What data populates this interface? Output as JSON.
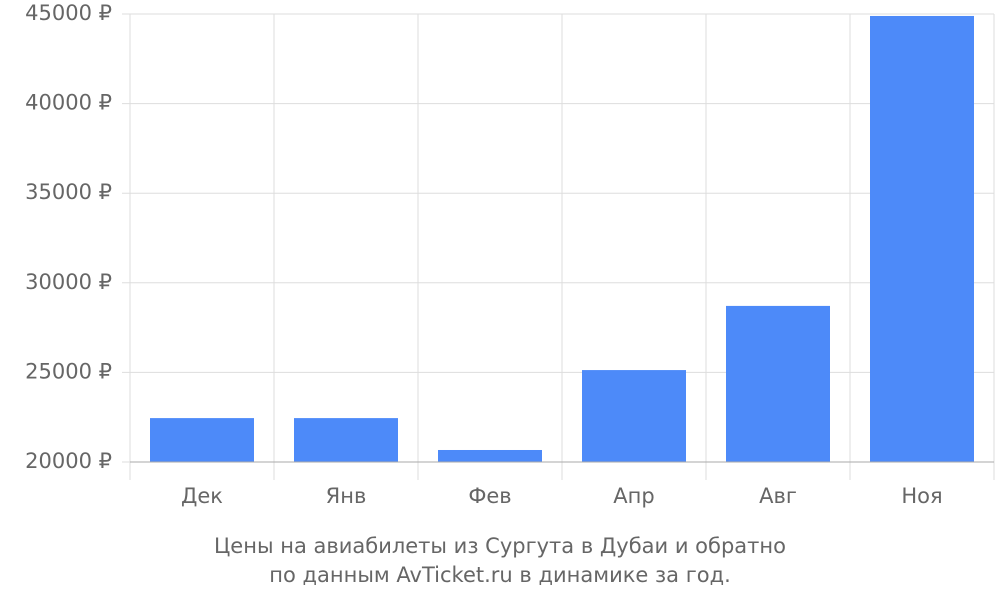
{
  "chart_data": {
    "type": "bar",
    "title": [
      "Цены на авиабилеты из Сургута в Дубаи и обратно",
      "по данным AvTicket.ru в динамике за год."
    ],
    "categories": [
      "Дек",
      "Янв",
      "Фев",
      "Апр",
      "Авг",
      "Ноя"
    ],
    "values": [
      22450,
      22450,
      20670,
      25130,
      28710,
      44890
    ],
    "color": "#4d8af9",
    "ylim": [
      20000,
      45000
    ],
    "yticks": [
      {
        "value": 20000,
        "label": "20000 ₽"
      },
      {
        "value": 25000,
        "label": "25000 ₽"
      },
      {
        "value": 30000,
        "label": "30000 ₽"
      },
      {
        "value": 35000,
        "label": "35000 ₽"
      },
      {
        "value": 40000,
        "label": "40000 ₽"
      },
      {
        "value": 45000,
        "label": "45000 ₽"
      }
    ],
    "grid": true
  }
}
